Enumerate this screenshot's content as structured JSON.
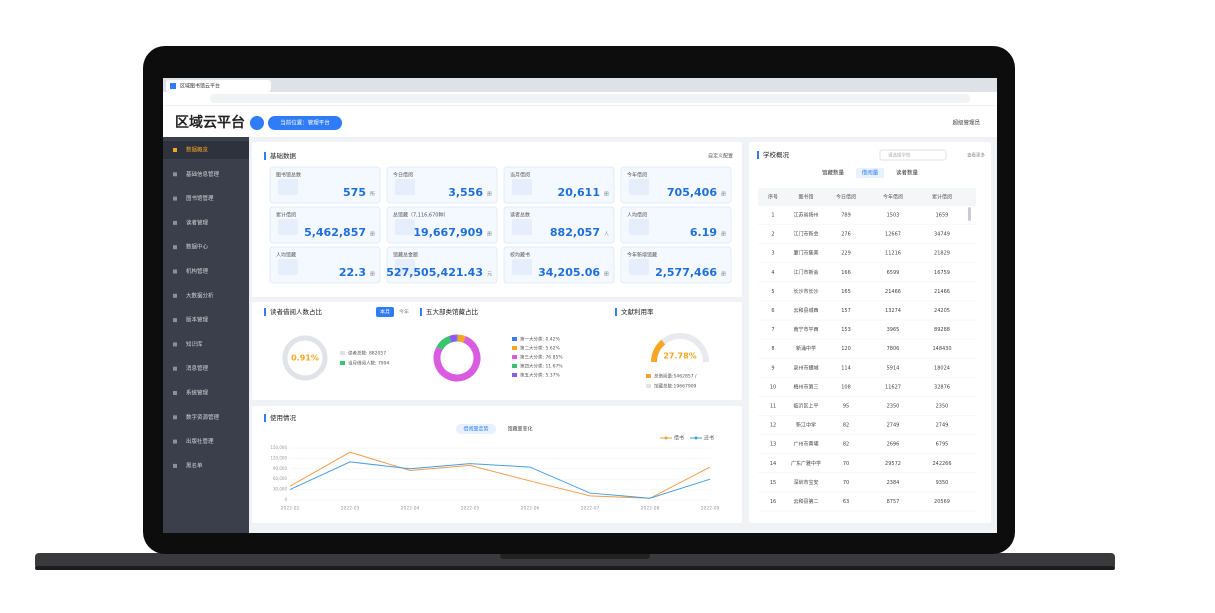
{
  "browser": {
    "tab_title": "区域图书馆云平台"
  },
  "header": {
    "logo": "区域云平台",
    "location": "当前位置：管理平台",
    "user": "超级管理员"
  },
  "sidebar": {
    "items": [
      "数据概览",
      "基础信息管理",
      "图书馆管理",
      "读者管理",
      "数据中心",
      "机构管理",
      "大数据分析",
      "版本管理",
      "知识库",
      "消息管理",
      "系统管理",
      "数字资源管理",
      "出版社管理",
      "黑名单"
    ]
  },
  "basic": {
    "title": "基础数据",
    "config": "自定义配置",
    "cards": [
      {
        "label": "图书馆总数",
        "value": "575",
        "unit": "所"
      },
      {
        "label": "今日借阅",
        "value": "3,556",
        "unit": "册"
      },
      {
        "label": "当月借阅",
        "value": "20,611",
        "unit": "册"
      },
      {
        "label": "今年借阅",
        "value": "705,406",
        "unit": "册"
      },
      {
        "label": "累计借阅",
        "value": "5,462,857",
        "unit": "册"
      },
      {
        "label": "总馆藏（7,116,670种）",
        "value": "19,667,909",
        "unit": "册"
      },
      {
        "label": "读者总数",
        "value": "882,057",
        "unit": "人"
      },
      {
        "label": "人均借阅",
        "value": "6.19",
        "unit": "册"
      },
      {
        "label": "人均馆藏",
        "value": "22.3",
        "unit": "册"
      },
      {
        "label": "馆藏总金额",
        "value": "527,505,421.43",
        "unit": "元"
      },
      {
        "label": "校均藏书",
        "value": "34,205.06",
        "unit": "册"
      },
      {
        "label": "今年新增馆藏",
        "value": "2,577,466",
        "unit": "册"
      }
    ]
  },
  "reader": {
    "title": "读者借阅人数占比",
    "tabs": [
      "本月",
      "今年"
    ],
    "center": "0.91%",
    "legend": [
      "读者总数: 882057",
      "当月借阅人数: 7994"
    ]
  },
  "category": {
    "title": "五大部类馆藏占比",
    "segments": [
      {
        "label": "第一大分类: 0.42%",
        "value": 0.42,
        "color": "#3b7bf6"
      },
      {
        "label": "第二大分类: 5.62%",
        "value": 5.62,
        "color": "#f5a623"
      },
      {
        "label": "第三大分类: 76.85%",
        "value": 76.85,
        "color": "#d95ce0"
      },
      {
        "label": "第四大分类: 11.67%",
        "value": 11.67,
        "color": "#36c46d"
      },
      {
        "label": "第五大分类: 5.37%",
        "value": 5.37,
        "color": "#8a5cf0"
      }
    ]
  },
  "utilization": {
    "title": "文献利用率",
    "value": 27.78,
    "center_label": "27.78%",
    "legend": [
      "总借阅量:5462857 /",
      "馆藏总数:19667909"
    ]
  },
  "usage": {
    "title": "使用情况",
    "tabs": [
      "借阅量走势",
      "馆藏量变化"
    ],
    "x": [
      "2022-02",
      "2022-03",
      "2022-04",
      "2022-05",
      "2022-06",
      "2022-07",
      "2022-08",
      "2022-09"
    ],
    "ylim": [
      0,
      150000
    ],
    "yticks": [
      0,
      {
        "value": 30000,
        "label": "30,000"
      },
      {
        "value": 60000,
        "label": "60,000"
      },
      {
        "value": 90000,
        "label": "90,000"
      },
      {
        "value": 120000,
        "label": "120,000"
      },
      {
        "value": 150000,
        "label": "150,000"
      }
    ],
    "series": [
      {
        "name": "借书",
        "color": "#f39c4a",
        "values": [
          40000,
          138000,
          85000,
          100000,
          55000,
          12000,
          5000,
          95000
        ]
      },
      {
        "name": "还书",
        "color": "#4a9de0",
        "values": [
          30000,
          110000,
          90000,
          105000,
          95000,
          20000,
          5000,
          60000
        ]
      }
    ]
  },
  "schools": {
    "title": "学校概况",
    "search": "请选择学校",
    "more": "查看更多",
    "tabs": [
      "馆藏数量",
      "借阅量",
      "读者数量"
    ],
    "columns": [
      "序号",
      "图书馆",
      "今日借阅",
      "今年借阅",
      "累计借阅"
    ],
    "rows": [
      [
        1,
        "江苏省扬州",
        789,
        1503,
        1659
      ],
      [
        2,
        "江门市新会",
        276,
        12667,
        34749
      ],
      [
        3,
        "厦门市集美",
        229,
        11216,
        21829
      ],
      [
        4,
        "江门市新会",
        166,
        6599,
        16759
      ],
      [
        5,
        "长沙市长沙",
        165,
        21466,
        21466
      ],
      [
        6,
        "云和县城西",
        157,
        13274,
        24205
      ],
      [
        7,
        "南宁市平西",
        153,
        3965,
        89288
      ],
      [
        8,
        "新涌中学",
        120,
        7806,
        148430
      ],
      [
        9,
        "泉州市鲤城",
        114,
        5914,
        18024
      ],
      [
        10,
        "梅州市第三",
        108,
        11627,
        32876
      ],
      [
        11,
        "临沂区上平",
        95,
        2350,
        2350
      ],
      [
        12,
        "新江中学",
        82,
        2749,
        2749
      ],
      [
        13,
        "广州市黄埔",
        82,
        2696,
        6795
      ],
      [
        14,
        "广东广雅中学",
        70,
        29572,
        242266
      ],
      [
        15,
        "深圳市宝安",
        70,
        2384,
        9350
      ],
      [
        16,
        "云和县第二",
        63,
        8757,
        20569
      ]
    ]
  }
}
